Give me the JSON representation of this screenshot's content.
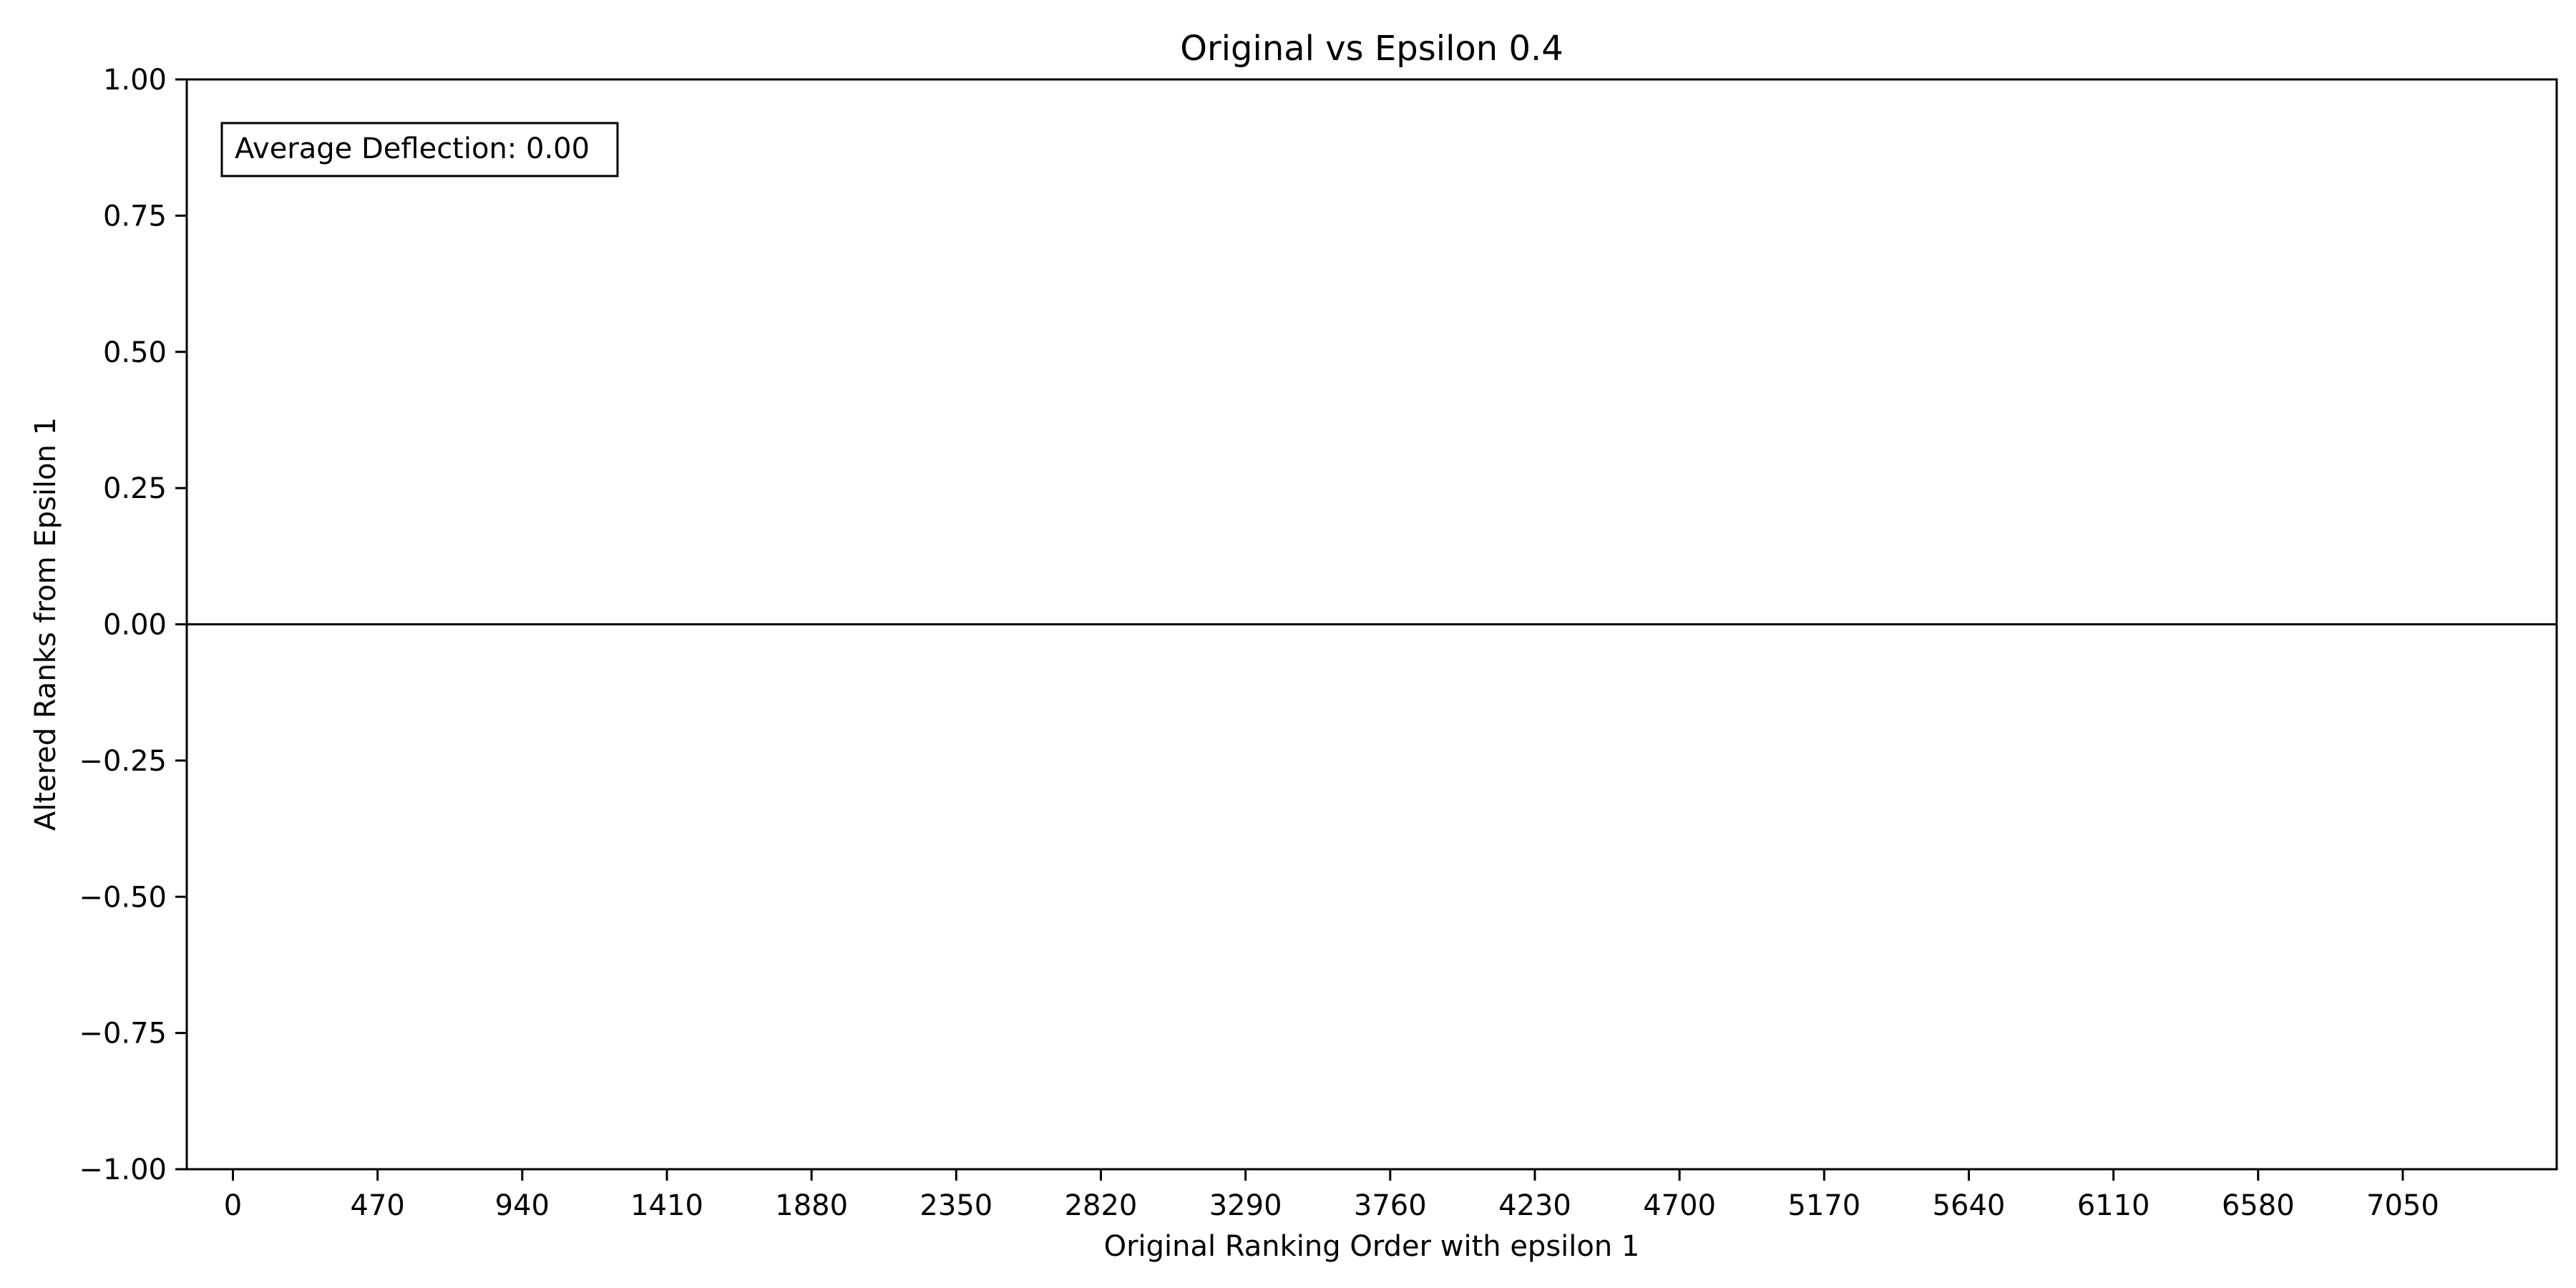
{
  "chart_data": {
    "type": "bar",
    "title": "Original vs Epsilon 0.4",
    "xlabel": "Original Ranking Order with epsilon 1",
    "ylabel": "Altered Ranks from Epsilon 1",
    "xlim": [
      -150,
      7550
    ],
    "ylim": [
      -1.0,
      1.0
    ],
    "x_ticks": [
      0,
      470,
      940,
      1410,
      1880,
      2350,
      2820,
      3290,
      3760,
      4230,
      4700,
      5170,
      5640,
      6110,
      6580,
      7050
    ],
    "y_ticks": [
      1.0,
      0.75,
      0.5,
      0.25,
      0.0,
      -0.25,
      -0.5,
      -0.75,
      -1.0
    ],
    "y_tick_labels": [
      "1.00",
      "0.75",
      "0.50",
      "0.25",
      "0.00",
      "−0.25",
      "−0.50",
      "−0.75",
      "−1.00"
    ],
    "baseline": 0,
    "values": [],
    "annotation": "Average Deflection: 0.00",
    "grid": false
  }
}
